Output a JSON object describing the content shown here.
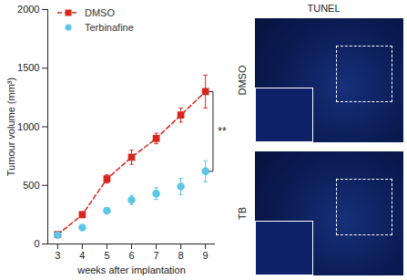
{
  "chart_data": {
    "type": "line",
    "x": [
      3,
      4,
      5,
      6,
      7,
      8,
      9
    ],
    "xlabel": "weeks after implantation",
    "ylabel": "Tumour volume (mm³)",
    "xlim": [
      2.6,
      9.4
    ],
    "xticks": [
      3,
      4,
      5,
      6,
      7,
      8,
      9
    ],
    "ylim": [
      0,
      2000
    ],
    "yticks": [
      0,
      500,
      1000,
      1500,
      2000
    ],
    "legend": "upper left",
    "series": [
      {
        "name": "DMSO",
        "color": "#d7261e",
        "marker": "square",
        "line_style": "dashed",
        "values": [
          80,
          250,
          555,
          740,
          900,
          1100,
          1300
        ],
        "errors": [
          20,
          25,
          35,
          60,
          45,
          60,
          140
        ]
      },
      {
        "name": "Terbinafine",
        "color": "#5bc6e6",
        "marker": "circle",
        "line_style": "none",
        "values": [
          75,
          140,
          285,
          375,
          430,
          490,
          620
        ],
        "errors": [
          10,
          15,
          25,
          40,
          50,
          70,
          90
        ]
      }
    ],
    "annotations": [
      "**"
    ]
  },
  "images": {
    "title": "TUNEL",
    "rows": [
      "DMSO",
      "TB"
    ]
  }
}
